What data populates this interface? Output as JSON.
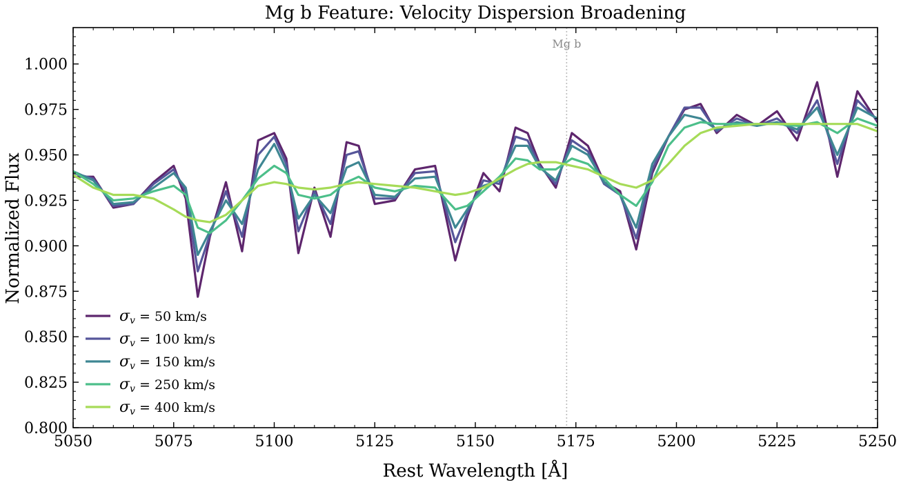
{
  "chart_data": {
    "type": "line",
    "title": "Mg b Feature: Velocity Dispersion Broadening",
    "xlabel": "Rest Wavelength [Å]",
    "ylabel": "Normalized Flux",
    "xlim": [
      5050,
      5250
    ],
    "ylim": [
      0.8,
      1.02
    ],
    "xticks": [
      5050,
      5075,
      5100,
      5125,
      5150,
      5175,
      5200,
      5225,
      5250
    ],
    "xtick_labels": [
      "5050",
      "5075",
      "5100",
      "5125",
      "5150",
      "5175",
      "5200",
      "5225",
      "5250"
    ],
    "yticks": [
      0.8,
      0.825,
      0.85,
      0.875,
      0.9,
      0.925,
      0.95,
      0.975,
      1.0
    ],
    "ytick_labels": [
      "0.800",
      "0.825",
      "0.850",
      "0.875",
      "0.900",
      "0.925",
      "0.950",
      "0.975",
      "1.000"
    ],
    "grid": false,
    "legend_position": "lower-left",
    "marker": {
      "x": 5172.7,
      "label": "Mg b",
      "color": "#bbbbbb"
    },
    "x": [
      5050,
      5055,
      5060,
      5065,
      5070,
      5075,
      5078,
      5081,
      5084,
      5088,
      5092,
      5096,
      5100,
      5103,
      5106,
      5110,
      5114,
      5118,
      5121,
      5125,
      5130,
      5135,
      5140,
      5145,
      5148,
      5152,
      5156,
      5160,
      5163,
      5166,
      5170,
      5174,
      5178,
      5182,
      5186,
      5190,
      5194,
      5198,
      5202,
      5206,
      5210,
      5215,
      5220,
      5225,
      5230,
      5235,
      5240,
      5245,
      5250
    ],
    "series": [
      {
        "name": "σv = 50 km/s",
        "label_main": "σ",
        "label_sub": "v",
        "label_rest": " = 50 km/s",
        "color": "#5e266d",
        "values": [
          0.938,
          0.938,
          0.921,
          0.923,
          0.935,
          0.944,
          0.926,
          0.872,
          0.905,
          0.935,
          0.897,
          0.958,
          0.962,
          0.948,
          0.896,
          0.932,
          0.905,
          0.957,
          0.955,
          0.923,
          0.925,
          0.942,
          0.944,
          0.892,
          0.916,
          0.94,
          0.93,
          0.965,
          0.962,
          0.945,
          0.932,
          0.962,
          0.955,
          0.935,
          0.93,
          0.898,
          0.94,
          0.96,
          0.975,
          0.978,
          0.962,
          0.972,
          0.966,
          0.974,
          0.958,
          0.99,
          0.938,
          0.985,
          0.968
        ]
      },
      {
        "name": "σv = 100 km/s",
        "label_main": "σ",
        "label_sub": "v",
        "label_rest": " = 100 km/s",
        "color": "#56569a",
        "values": [
          0.94,
          0.937,
          0.922,
          0.923,
          0.934,
          0.942,
          0.93,
          0.886,
          0.906,
          0.93,
          0.905,
          0.95,
          0.96,
          0.945,
          0.908,
          0.93,
          0.912,
          0.95,
          0.952,
          0.926,
          0.926,
          0.94,
          0.941,
          0.902,
          0.918,
          0.936,
          0.934,
          0.96,
          0.958,
          0.944,
          0.934,
          0.958,
          0.952,
          0.934,
          0.928,
          0.904,
          0.942,
          0.96,
          0.976,
          0.976,
          0.963,
          0.97,
          0.966,
          0.97,
          0.962,
          0.98,
          0.945,
          0.98,
          0.969
        ]
      },
      {
        "name": "σv = 150 km/s",
        "label_main": "σ",
        "label_sub": "v",
        "label_rest": " = 150 km/s",
        "color": "#3f8793",
        "values": [
          0.941,
          0.936,
          0.923,
          0.924,
          0.932,
          0.94,
          0.932,
          0.895,
          0.908,
          0.925,
          0.912,
          0.942,
          0.956,
          0.942,
          0.915,
          0.928,
          0.918,
          0.943,
          0.946,
          0.928,
          0.927,
          0.937,
          0.938,
          0.91,
          0.92,
          0.933,
          0.936,
          0.955,
          0.955,
          0.943,
          0.936,
          0.955,
          0.95,
          0.935,
          0.928,
          0.91,
          0.945,
          0.96,
          0.972,
          0.97,
          0.964,
          0.968,
          0.966,
          0.968,
          0.964,
          0.976,
          0.95,
          0.976,
          0.97
        ]
      },
      {
        "name": "σv = 250 km/s",
        "label_main": "σ",
        "label_sub": "v",
        "label_rest": " = 250 km/s",
        "color": "#4cbf8a",
        "values": [
          0.941,
          0.934,
          0.925,
          0.926,
          0.93,
          0.933,
          0.928,
          0.91,
          0.907,
          0.914,
          0.925,
          0.937,
          0.944,
          0.94,
          0.928,
          0.926,
          0.928,
          0.935,
          0.938,
          0.932,
          0.93,
          0.933,
          0.932,
          0.92,
          0.922,
          0.93,
          0.938,
          0.948,
          0.947,
          0.942,
          0.942,
          0.948,
          0.945,
          0.937,
          0.928,
          0.922,
          0.935,
          0.955,
          0.965,
          0.968,
          0.967,
          0.967,
          0.967,
          0.967,
          0.966,
          0.968,
          0.962,
          0.97,
          0.966
        ]
      },
      {
        "name": "σv = 400 km/s",
        "label_main": "σ",
        "label_sub": "v",
        "label_rest": " = 400 km/s",
        "color": "#a6db58",
        "values": [
          0.939,
          0.932,
          0.928,
          0.928,
          0.926,
          0.92,
          0.916,
          0.914,
          0.913,
          0.917,
          0.925,
          0.933,
          0.935,
          0.934,
          0.932,
          0.931,
          0.932,
          0.934,
          0.935,
          0.934,
          0.933,
          0.932,
          0.93,
          0.928,
          0.929,
          0.932,
          0.937,
          0.942,
          0.945,
          0.946,
          0.946,
          0.944,
          0.942,
          0.938,
          0.934,
          0.932,
          0.936,
          0.945,
          0.955,
          0.962,
          0.965,
          0.966,
          0.967,
          0.967,
          0.967,
          0.967,
          0.967,
          0.967,
          0.963
        ]
      }
    ]
  }
}
